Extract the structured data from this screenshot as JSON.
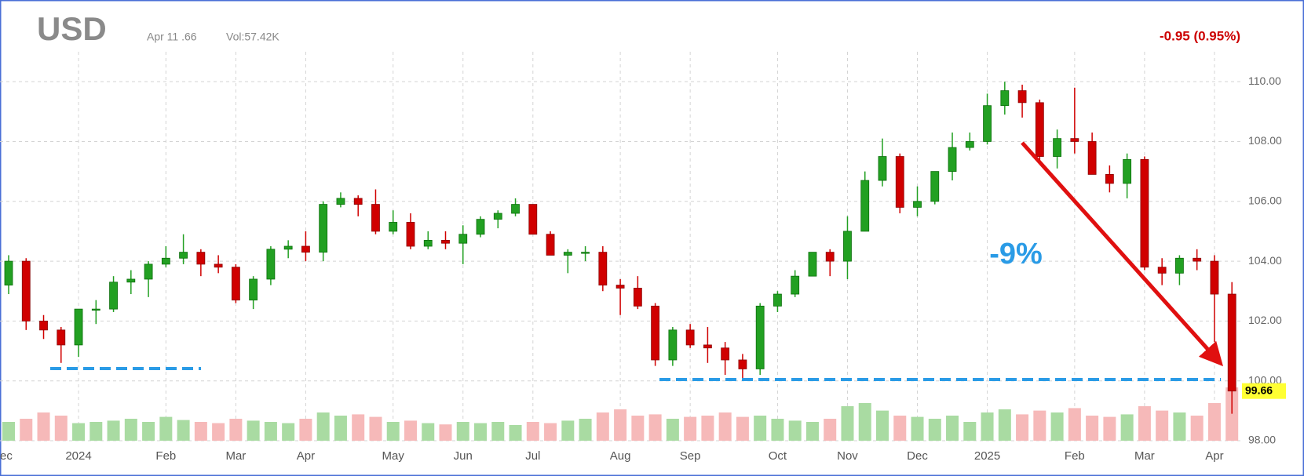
{
  "chart_data": {
    "type": "candlestick",
    "title": "USD",
    "info": [
      "Apr 11 .66",
      "Vol:57.42K"
    ],
    "change": "-0.95 (0.95%)",
    "annotation": "-9%",
    "categories": [
      "ec",
      null,
      null,
      null,
      "2024",
      null,
      null,
      null,
      null,
      "Feb",
      null,
      null,
      null,
      "Mar",
      null,
      null,
      null,
      "Apr",
      null,
      null,
      null,
      null,
      "May",
      null,
      null,
      null,
      "Jun",
      null,
      null,
      null,
      "Jul",
      null,
      null,
      null,
      null,
      "Aug",
      null,
      null,
      null,
      "Sep",
      null,
      null,
      null,
      null,
      "Oct",
      null,
      null,
      null,
      "Nov",
      null,
      null,
      null,
      "Dec",
      null,
      null,
      null,
      "2025",
      null,
      null,
      null,
      null,
      "Feb",
      null,
      null,
      null,
      "Mar",
      null,
      null,
      null,
      "Apr",
      null
    ],
    "open": [
      103.2,
      104.0,
      102.0,
      101.7,
      101.2,
      102.4,
      102.4,
      103.3,
      103.4,
      103.9,
      104.1,
      104.3,
      103.9,
      103.8,
      102.7,
      103.4,
      104.4,
      104.5,
      104.3,
      105.9,
      106.1,
      105.9,
      105.0,
      105.3,
      104.5,
      104.7,
      104.6,
      104.9,
      105.4,
      105.6,
      105.9,
      104.9,
      104.2,
      104.3,
      104.3,
      103.2,
      103.1,
      102.5,
      100.7,
      101.7,
      101.2,
      101.1,
      100.7,
      100.4,
      102.5,
      102.9,
      103.5,
      104.3,
      104.0,
      105.0,
      106.7,
      107.5,
      105.8,
      106.0,
      107.0,
      107.8,
      108.0,
      109.2,
      109.7,
      109.3,
      107.5,
      108.1,
      108.0,
      106.9,
      106.6,
      107.4,
      103.8,
      103.6,
      104.1,
      104.0,
      102.9
    ],
    "high": [
      104.2,
      104.1,
      102.2,
      101.8,
      102.4,
      102.7,
      103.5,
      103.7,
      104.0,
      104.5,
      104.9,
      104.4,
      104.2,
      103.9,
      103.5,
      104.5,
      104.7,
      105.0,
      106.0,
      106.3,
      106.2,
      106.4,
      105.7,
      105.6,
      105.0,
      105.0,
      105.2,
      105.5,
      105.7,
      106.1,
      105.9,
      105.0,
      104.4,
      104.5,
      104.5,
      103.4,
      103.5,
      102.6,
      101.8,
      101.9,
      101.8,
      101.3,
      100.9,
      102.6,
      103.0,
      103.7,
      104.3,
      104.4,
      105.5,
      107.0,
      108.1,
      107.6,
      106.5,
      107.0,
      108.3,
      108.3,
      109.6,
      110.0,
      109.9,
      109.4,
      108.4,
      109.8,
      108.3,
      107.2,
      107.6,
      107.5,
      104.1,
      104.2,
      104.4,
      104.2,
      103.3
    ],
    "low": [
      102.9,
      101.7,
      101.4,
      100.6,
      100.8,
      101.9,
      102.3,
      102.9,
      102.8,
      103.8,
      103.9,
      103.5,
      103.6,
      102.6,
      102.4,
      103.2,
      104.1,
      104.0,
      104.0,
      105.8,
      105.5,
      104.9,
      104.9,
      104.4,
      104.4,
      104.4,
      103.9,
      104.8,
      105.1,
      105.5,
      104.9,
      104.2,
      103.6,
      104.0,
      103.0,
      102.2,
      102.4,
      100.5,
      100.5,
      101.1,
      100.6,
      100.2,
      100.0,
      100.2,
      102.3,
      102.8,
      103.5,
      103.5,
      103.4,
      105.0,
      106.5,
      105.6,
      105.5,
      105.9,
      106.7,
      107.7,
      107.9,
      108.9,
      108.8,
      107.3,
      107.1,
      107.6,
      106.9,
      106.3,
      106.1,
      103.7,
      103.2,
      103.2,
      103.7,
      101.3,
      98.9
    ],
    "close": [
      104.0,
      102.0,
      101.7,
      101.2,
      102.4,
      102.4,
      103.3,
      103.4,
      103.9,
      104.1,
      104.3,
      103.9,
      103.8,
      102.7,
      103.4,
      104.4,
      104.5,
      104.3,
      105.9,
      106.1,
      105.9,
      105.0,
      105.3,
      104.5,
      104.7,
      104.6,
      104.9,
      105.4,
      105.6,
      105.9,
      104.9,
      104.2,
      104.3,
      104.3,
      103.2,
      103.1,
      102.5,
      100.7,
      101.7,
      101.2,
      101.1,
      100.7,
      100.4,
      102.5,
      102.9,
      103.5,
      104.3,
      104.0,
      105.0,
      106.7,
      107.5,
      105.8,
      106.0,
      107.0,
      107.8,
      108.0,
      109.2,
      109.7,
      109.3,
      107.5,
      108.1,
      108.0,
      106.9,
      106.6,
      107.4,
      103.8,
      103.6,
      104.1,
      104.0,
      102.9,
      99.66
    ],
    "volume": [
      30,
      35,
      45,
      40,
      28,
      30,
      32,
      35,
      30,
      38,
      33,
      30,
      28,
      35,
      32,
      30,
      28,
      35,
      45,
      40,
      42,
      38,
      30,
      32,
      28,
      26,
      30,
      28,
      30,
      25,
      30,
      28,
      32,
      35,
      45,
      50,
      40,
      42,
      35,
      38,
      40,
      45,
      38,
      40,
      35,
      32,
      30,
      35,
      55,
      60,
      48,
      40,
      38,
      35,
      40,
      30,
      45,
      50,
      42,
      48,
      45,
      52,
      40,
      38,
      42,
      55,
      48,
      45,
      40,
      60,
      85
    ],
    "vlim": [
      0,
      150
    ],
    "ylim": [
      98,
      111
    ],
    "yticks": [
      {
        "value": 98,
        "label": "98.00"
      },
      {
        "value": 100,
        "label": "100.00"
      },
      {
        "value": 102,
        "label": "102.00"
      },
      {
        "value": 104,
        "label": "104.00"
      },
      {
        "value": 106,
        "label": "106.00"
      },
      {
        "value": 108,
        "label": "108.00"
      },
      {
        "value": 110,
        "label": "110.00"
      }
    ],
    "grid": true,
    "up_color": "#22a022",
    "down_color": "#d00000",
    "up_volume_color": "#a9dba2",
    "down_volume_color": "#f6b9b9"
  }
}
